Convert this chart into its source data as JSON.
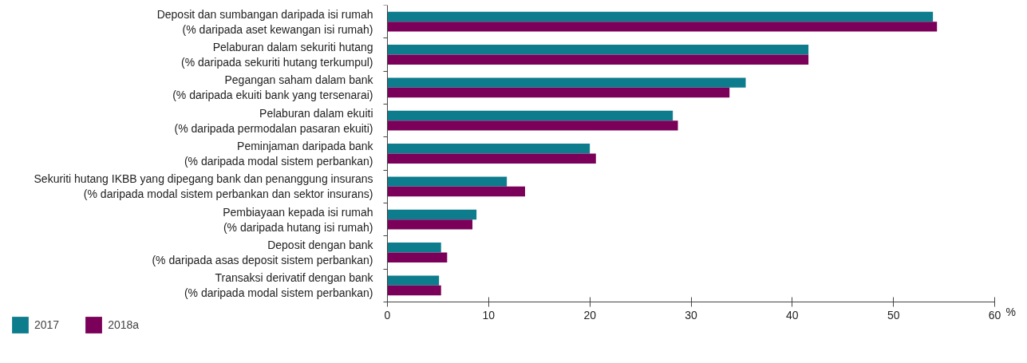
{
  "chart_data": {
    "type": "bar",
    "orientation": "horizontal",
    "xlabel": "%",
    "categories": [
      "Deposit dan sumbangan daripada isi rumah (% daripada aset kewangan isi rumah)",
      "Pelaburan dalam sekuriti hutang (% daripada sekuriti hutang terkumpul)",
      "Pegangan saham dalam bank (% daripada ekuiti bank yang tersenarai)",
      "Pelaburan dalam ekuiti (% daripada permodalan pasaran ekuiti)",
      "Peminjaman daripada bank (% daripada modal sistem perbankan)",
      "Sekuriti hutang IKBB yang dipegang bank dan penanggung insurans (% daripada modal sistem perbankan dan sektor insurans)",
      "Pembiayaan kepada isi rumah (% daripada hutang isi rumah)",
      "Deposit dengan bank (% daripada asas deposit sistem perbankan)",
      "Transaksi derivatif dengan bank (% daripada modal sistem perbankan)"
    ],
    "series": [
      {
        "name": "2017",
        "color": "#0d7c8c",
        "values": [
          53.9,
          41.6,
          35.4,
          28.2,
          20.0,
          11.8,
          8.8,
          5.3,
          5.1
        ]
      },
      {
        "name": "2018a",
        "color": "#7a0059",
        "values": [
          54.3,
          41.6,
          33.8,
          28.7,
          20.6,
          13.6,
          8.4,
          5.9,
          5.3
        ]
      }
    ],
    "xlim": [
      0,
      60
    ],
    "xticks": [
      0,
      10,
      20,
      30,
      40,
      50,
      60
    ],
    "legend": "bottom left"
  }
}
